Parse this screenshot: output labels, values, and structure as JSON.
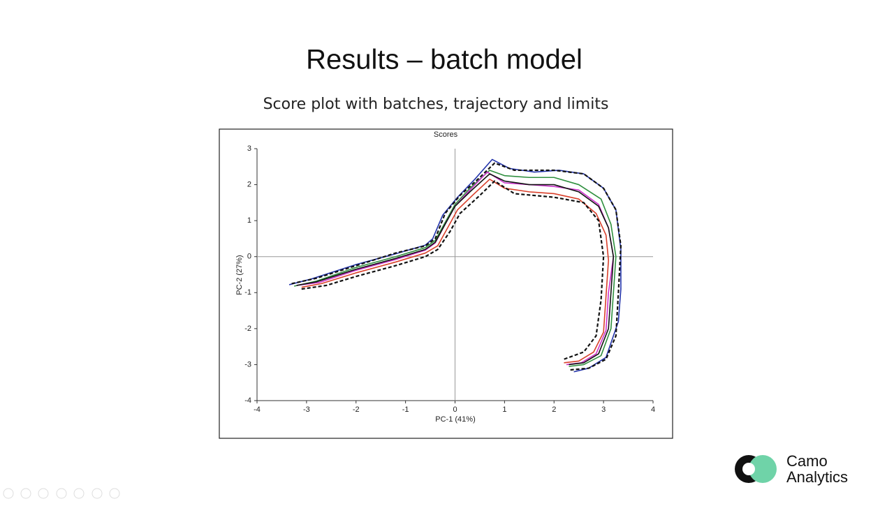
{
  "slide": {
    "title": "Results – batch model",
    "subtitle": "Score plot with batches, trajectory and limits",
    "logo": {
      "line1": "Camo",
      "line2": "Analytics"
    }
  },
  "chart_data": {
    "type": "line",
    "title": "Scores",
    "x_label": "PC-1 (41%)",
    "y_label": "PC-2 (27%)",
    "xlim": [
      -4,
      4
    ],
    "ylim": [
      -4,
      3
    ],
    "xticks": [
      -4,
      -3,
      -2,
      -1,
      0,
      1,
      2,
      3,
      4
    ],
    "yticks": [
      -4,
      -3,
      -2,
      -1,
      0,
      1,
      2,
      3
    ],
    "zero_lines": true,
    "series": [
      {
        "color": "#2f8f3f",
        "linestyle": "solid",
        "x": [
          -3.25,
          -2.8,
          -2.0,
          -1.2,
          -0.6,
          -0.4,
          -0.2,
          0.0,
          0.3,
          0.7,
          1.0,
          1.5,
          2.0,
          2.5,
          2.95,
          3.15,
          3.25,
          3.2,
          3.15,
          2.95,
          2.6,
          2.3
        ],
        "values": [
          -0.82,
          -0.68,
          -0.3,
          0.0,
          0.25,
          0.45,
          0.95,
          1.45,
          1.9,
          2.4,
          2.25,
          2.2,
          2.2,
          2.0,
          1.6,
          0.9,
          0.0,
          -1.0,
          -2.0,
          -2.75,
          -3.0,
          -3.05
        ]
      },
      {
        "color": "#d9402b",
        "linestyle": "solid",
        "x": [
          -3.1,
          -2.7,
          -2.0,
          -1.2,
          -0.6,
          -0.35,
          -0.15,
          0.05,
          0.35,
          0.7,
          1.0,
          1.5,
          2.0,
          2.5,
          2.85,
          3.05,
          3.1,
          3.05,
          3.0,
          2.8,
          2.5,
          2.2
        ],
        "values": [
          -0.85,
          -0.75,
          -0.45,
          -0.15,
          0.1,
          0.3,
          0.8,
          1.3,
          1.7,
          2.15,
          1.9,
          1.8,
          1.75,
          1.6,
          1.2,
          0.6,
          -0.1,
          -1.1,
          -2.1,
          -2.65,
          -2.9,
          -2.95
        ]
      },
      {
        "color": "#2233aa",
        "linestyle": "solid",
        "x": [
          -3.35,
          -2.9,
          -2.0,
          -1.2,
          -0.6,
          -0.45,
          -0.25,
          0.05,
          0.4,
          0.75,
          1.1,
          1.6,
          2.1,
          2.6,
          3.0,
          3.25,
          3.35,
          3.35,
          3.3,
          3.05,
          2.7,
          2.4
        ],
        "values": [
          -0.78,
          -0.62,
          -0.22,
          0.08,
          0.32,
          0.5,
          1.15,
          1.65,
          2.15,
          2.7,
          2.45,
          2.35,
          2.4,
          2.3,
          1.9,
          1.3,
          0.2,
          -0.9,
          -1.8,
          -2.8,
          -3.1,
          -3.2
        ]
      },
      {
        "color": "#cc33cc",
        "linestyle": "solid",
        "x": [
          -3.2,
          -2.75,
          -2.0,
          -1.2,
          -0.6,
          -0.4,
          -0.2,
          0.0,
          0.3,
          0.65,
          1.0,
          1.5,
          2.0,
          2.5,
          2.9,
          3.1,
          3.2,
          3.1,
          3.05,
          2.85,
          2.55,
          2.25
        ],
        "values": [
          -0.8,
          -0.72,
          -0.38,
          -0.08,
          0.18,
          0.38,
          0.9,
          1.4,
          1.85,
          2.35,
          2.05,
          2.0,
          1.95,
          1.85,
          1.45,
          0.8,
          0.0,
          -1.0,
          -2.05,
          -2.7,
          -2.95,
          -3.0
        ]
      },
      {
        "color": "#111111",
        "linestyle": "solid",
        "x": [
          -3.2,
          -2.8,
          -2.0,
          -1.2,
          -0.6,
          -0.4,
          -0.2,
          0.0,
          0.3,
          0.7,
          1.0,
          1.5,
          2.0,
          2.5,
          2.9,
          3.1,
          3.2,
          3.15,
          3.1,
          2.9,
          2.6,
          2.3
        ],
        "values": [
          -0.8,
          -0.7,
          -0.35,
          -0.05,
          0.2,
          0.4,
          0.9,
          1.4,
          1.8,
          2.3,
          2.1,
          2.0,
          2.0,
          1.8,
          1.4,
          0.8,
          0.0,
          -1.0,
          -2.0,
          -2.7,
          -2.95,
          -3.0
        ]
      },
      {
        "color": "#111111",
        "linestyle": "dashed",
        "x": [
          -3.3,
          -2.8,
          -2.0,
          -1.2,
          -0.6,
          -0.4,
          -0.2,
          0.1,
          0.5,
          0.8,
          1.2,
          2.0,
          2.6,
          3.0,
          3.25,
          3.35,
          3.3,
          3.25,
          3.05,
          2.7,
          2.3
        ],
        "values": [
          -0.75,
          -0.6,
          -0.25,
          0.1,
          0.3,
          0.5,
          1.2,
          1.7,
          2.2,
          2.6,
          2.4,
          2.4,
          2.3,
          1.9,
          1.3,
          0.3,
          -1.0,
          -2.2,
          -2.85,
          -3.1,
          -3.15
        ]
      },
      {
        "color": "#111111",
        "linestyle": "dashed",
        "x": [
          -3.1,
          -2.6,
          -2.0,
          -1.2,
          -0.6,
          -0.35,
          -0.1,
          0.1,
          0.5,
          0.8,
          1.2,
          2.0,
          2.6,
          2.9,
          3.0,
          2.95,
          2.85,
          2.6,
          2.2
        ],
        "values": [
          -0.9,
          -0.8,
          -0.55,
          -0.25,
          0.0,
          0.2,
          0.7,
          1.2,
          1.7,
          2.1,
          1.75,
          1.65,
          1.5,
          1.0,
          0.0,
          -1.2,
          -2.2,
          -2.65,
          -2.85
        ]
      }
    ]
  }
}
